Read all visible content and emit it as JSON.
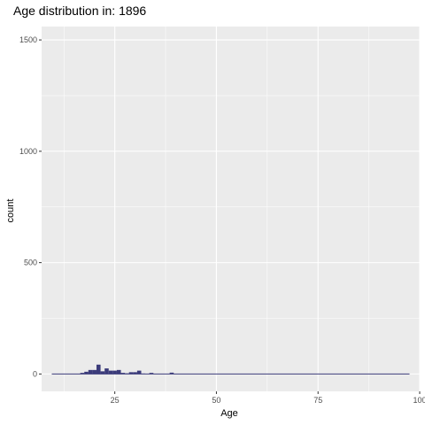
{
  "chart_data": {
    "type": "histogram",
    "title": "Age distribution in: 1896",
    "xlabel": "Age",
    "ylabel": "count",
    "xlim": [
      7,
      100
    ],
    "ylim": [
      -78,
      1560
    ],
    "x_ticks": [
      25,
      50,
      75,
      100
    ],
    "y_ticks": [
      0,
      500,
      1000,
      1500
    ],
    "x_minor": [
      12.5,
      37.5,
      62.5,
      87.5
    ],
    "y_minor": [
      250,
      750,
      1250
    ],
    "bin_width": 1,
    "x_range": [
      9.5,
      97.5
    ],
    "bins": [
      {
        "x": 17,
        "count": 5
      },
      {
        "x": 18,
        "count": 10
      },
      {
        "x": 19,
        "count": 18
      },
      {
        "x": 20,
        "count": 18
      },
      {
        "x": 21,
        "count": 42
      },
      {
        "x": 22,
        "count": 12
      },
      {
        "x": 23,
        "count": 25
      },
      {
        "x": 24,
        "count": 15
      },
      {
        "x": 25,
        "count": 15
      },
      {
        "x": 26,
        "count": 18
      },
      {
        "x": 27,
        "count": 5
      },
      {
        "x": 28,
        "count": 3
      },
      {
        "x": 29,
        "count": 8
      },
      {
        "x": 30,
        "count": 8
      },
      {
        "x": 31,
        "count": 15
      },
      {
        "x": 32,
        "count": 2
      },
      {
        "x": 34,
        "count": 5
      },
      {
        "x": 39,
        "count": 6
      }
    ],
    "grid": true,
    "colors": {
      "panel": "#ebebeb",
      "grid": "#ffffff",
      "bar": "#3b3b7a"
    }
  }
}
